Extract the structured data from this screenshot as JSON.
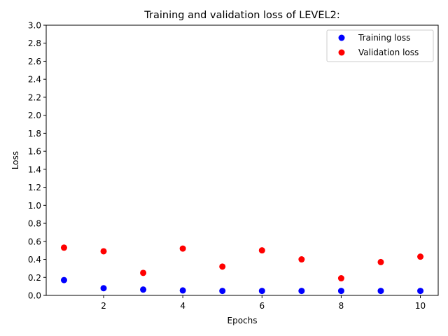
{
  "chart_data": {
    "type": "scatter",
    "title": "Training and validation loss of LEVEL2:",
    "xlabel": "Epochs",
    "ylabel": "Loss",
    "xlim": [
      0.55,
      10.45
    ],
    "ylim": [
      0.0,
      3.0
    ],
    "x_ticks": [
      2,
      4,
      6,
      8,
      10
    ],
    "y_ticks": [
      0.0,
      0.2,
      0.4,
      0.6,
      0.8,
      1.0,
      1.2,
      1.4,
      1.6,
      1.8,
      2.0,
      2.2,
      2.4,
      2.6,
      2.8,
      3.0
    ],
    "legend_position": "top-right",
    "grid": false,
    "x": [
      1,
      2,
      3,
      4,
      5,
      6,
      7,
      8,
      9,
      10
    ],
    "series": [
      {
        "name": "Training loss",
        "color": "#0000ff",
        "values": [
          0.17,
          0.08,
          0.065,
          0.055,
          0.05,
          0.05,
          0.05,
          0.05,
          0.05,
          0.05
        ]
      },
      {
        "name": "Validation loss",
        "color": "#ff0000",
        "values": [
          0.53,
          0.49,
          0.25,
          0.52,
          0.32,
          0.5,
          0.4,
          0.19,
          0.37,
          0.43
        ]
      }
    ]
  }
}
